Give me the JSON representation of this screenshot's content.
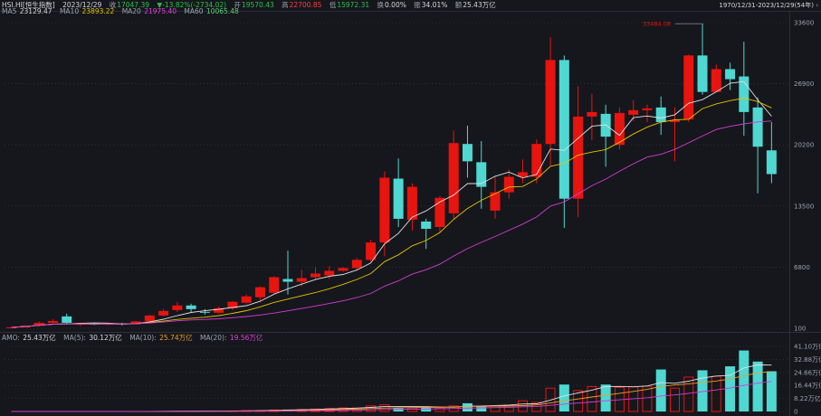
{
  "info": {
    "symbol": "HSI.HI[恒生指数]",
    "date": "2023/12/29",
    "close_label": "收",
    "close": "17047.39",
    "change": "-13.82%(-2734.02)",
    "open_label": "开",
    "open": "19570.43",
    "high_label": "高",
    "high": "22700.85",
    "low_label": "低",
    "low": "15972.31",
    "change_icon": "triangle-down-icon",
    "turnover_label": "换",
    "turnover": "0.00%",
    "amplitude_label": "振",
    "amplitude": "34.01%",
    "amount_label": "额",
    "amount": "25.43万亿",
    "range_label": "1970/12/31-2023/12/29(54年)"
  },
  "ma": {
    "ma5_label": "MA5",
    "ma5": "23129.47",
    "ma10_label": "MA10",
    "ma10": "23893.22",
    "ma20_label": "MA20",
    "ma20": "21975.40",
    "ma60_label": "MA60",
    "ma60": "10065.48"
  },
  "vol": {
    "amo_label": "AMO:",
    "amo": "25.43万亿",
    "ma5_label": "MA(5):",
    "ma5": "30.12万亿",
    "ma10_label": "MA(10):",
    "ma10": "25.74万亿",
    "ma20_label": "MA(20):",
    "ma20": "19.56万亿"
  },
  "colors": {
    "up": "#e8140f",
    "down": "#4fd8d2",
    "ma5": "#e0e0e0",
    "ma10": "#e6c200",
    "ma20": "#d43cd4",
    "ma60": "#2cb34a",
    "bg": "#16171c",
    "grid": "#3a3d46"
  },
  "annotation": "33484.08",
  "chart_data": {
    "type": "candlestick",
    "price_axis_ticks": [
      "33600",
      "26900",
      "20200",
      "13500",
      "6800",
      "100"
    ],
    "volume_axis_ticks": [
      "41.10万亿",
      "32.88万亿",
      "24.66万亿",
      "16.44万亿",
      "8.22万亿",
      "0"
    ],
    "price_ylim": [
      100,
      33600
    ],
    "volume_ylim": [
      0,
      41.1
    ],
    "candles": [
      {
        "o": 130,
        "c": 200,
        "h": 230,
        "l": 100,
        "v": 0
      },
      {
        "o": 200,
        "c": 380,
        "h": 420,
        "l": 180,
        "v": 0
      },
      {
        "o": 380,
        "c": 700,
        "h": 820,
        "l": 330,
        "v": 0.02
      },
      {
        "o": 700,
        "c": 900,
        "h": 1100,
        "l": 600,
        "v": 0.04
      },
      {
        "o": 1400,
        "c": 700,
        "h": 1700,
        "l": 600,
        "v": 0.05
      },
      {
        "o": 500,
        "c": 600,
        "h": 700,
        "l": 350,
        "v": 0.03
      },
      {
        "o": 600,
        "c": 500,
        "h": 700,
        "l": 450,
        "v": 0.03
      },
      {
        "o": 500,
        "c": 600,
        "h": 650,
        "l": 450,
        "v": 0.03
      },
      {
        "o": 600,
        "c": 500,
        "h": 700,
        "l": 400,
        "v": 0.03
      },
      {
        "o": 550,
        "c": 850,
        "h": 900,
        "l": 500,
        "v": 0.08
      },
      {
        "o": 850,
        "c": 1500,
        "h": 1600,
        "l": 800,
        "v": 0.2
      },
      {
        "o": 1500,
        "c": 2000,
        "h": 2200,
        "l": 1400,
        "v": 0.2
      },
      {
        "o": 2100,
        "c": 2600,
        "h": 3000,
        "l": 1900,
        "v": 0.25
      },
      {
        "o": 2600,
        "c": 2200,
        "h": 2800,
        "l": 1800,
        "v": 0.2
      },
      {
        "o": 1900,
        "c": 1800,
        "h": 2200,
        "l": 1600,
        "v": 0.25
      },
      {
        "o": 1800,
        "c": 2300,
        "h": 2500,
        "l": 1700,
        "v": 0.25
      },
      {
        "o": 2300,
        "c": 3000,
        "h": 3100,
        "l": 2100,
        "v": 0.6
      },
      {
        "o": 2900,
        "c": 3600,
        "h": 3800,
        "l": 2800,
        "v": 0.8
      },
      {
        "o": 3500,
        "c": 4600,
        "h": 4700,
        "l": 3000,
        "v": 0.7
      },
      {
        "o": 4000,
        "c": 5700,
        "h": 5800,
        "l": 3900,
        "v": 1.2
      },
      {
        "o": 5500,
        "c": 5200,
        "h": 8600,
        "l": 3800,
        "v": 1.2
      },
      {
        "o": 5200,
        "c": 5600,
        "h": 6500,
        "l": 4700,
        "v": 1.5
      },
      {
        "o": 5700,
        "c": 6100,
        "h": 6800,
        "l": 5400,
        "v": 1.8
      },
      {
        "o": 5900,
        "c": 6400,
        "h": 6900,
        "l": 5500,
        "v": 2.2
      },
      {
        "o": 6400,
        "c": 6700,
        "h": 6800,
        "l": 6300,
        "v": 2.5
      },
      {
        "o": 6700,
        "c": 7600,
        "h": 7800,
        "l": 6400,
        "v": 2.5
      },
      {
        "o": 7600,
        "c": 9500,
        "h": 9800,
        "l": 7400,
        "v": 3.8
      },
      {
        "o": 9500,
        "c": 16600,
        "h": 17300,
        "l": 8000,
        "v": 4.5
      },
      {
        "o": 16500,
        "c": 12100,
        "h": 18700,
        "l": 11200,
        "v": 2.0
      },
      {
        "o": 12000,
        "c": 15600,
        "h": 16000,
        "l": 10800,
        "v": 2.5
      },
      {
        "o": 11800,
        "c": 11000,
        "h": 12100,
        "l": 8800,
        "v": 2.4
      },
      {
        "o": 11200,
        "c": 14400,
        "h": 14600,
        "l": 10600,
        "v": 2.6
      },
      {
        "o": 12700,
        "c": 20400,
        "h": 21800,
        "l": 12100,
        "v": 3.8
      },
      {
        "o": 20300,
        "c": 18400,
        "h": 22300,
        "l": 16600,
        "v": 5.2
      },
      {
        "o": 18300,
        "c": 15600,
        "h": 20600,
        "l": 13200,
        "v": 3.4
      },
      {
        "o": 13000,
        "c": 15000,
        "h": 16700,
        "l": 12100,
        "v": 3.8
      },
      {
        "o": 15000,
        "c": 16700,
        "h": 17500,
        "l": 14300,
        "v": 4.2
      },
      {
        "o": 16700,
        "c": 17200,
        "h": 18600,
        "l": 16000,
        "v": 7.0
      },
      {
        "o": 16700,
        "c": 20300,
        "h": 20800,
        "l": 16000,
        "v": 6.0
      },
      {
        "o": 20300,
        "c": 29500,
        "h": 32000,
        "l": 17900,
        "v": 15.0
      },
      {
        "o": 29500,
        "c": 14300,
        "h": 30000,
        "l": 11100,
        "v": 17.0
      },
      {
        "o": 14300,
        "c": 23300,
        "h": 26600,
        "l": 12300,
        "v": 13.5
      },
      {
        "o": 23300,
        "c": 23800,
        "h": 25800,
        "l": 20700,
        "v": 16.0
      },
      {
        "o": 23600,
        "c": 21100,
        "h": 24600,
        "l": 17800,
        "v": 17.0
      },
      {
        "o": 20200,
        "c": 23700,
        "h": 24300,
        "l": 19700,
        "v": 15.5
      },
      {
        "o": 23500,
        "c": 24000,
        "h": 25100,
        "l": 22800,
        "v": 15.8
      },
      {
        "o": 24000,
        "c": 24200,
        "h": 24600,
        "l": 22700,
        "v": 16.2
      },
      {
        "o": 24300,
        "c": 22700,
        "h": 25500,
        "l": 21300,
        "v": 26.5
      },
      {
        "o": 22700,
        "c": 22900,
        "h": 24300,
        "l": 18400,
        "v": 15.0
      },
      {
        "o": 23000,
        "c": 30000,
        "h": 30100,
        "l": 22700,
        "v": 22.0
      },
      {
        "o": 30000,
        "c": 26000,
        "h": 33484,
        "l": 25700,
        "v": 26.0
      },
      {
        "o": 26000,
        "c": 28500,
        "h": 29000,
        "l": 26100,
        "v": 22.5
      },
      {
        "o": 28500,
        "c": 27400,
        "h": 29200,
        "l": 26200,
        "v": 28.5
      },
      {
        "o": 27700,
        "c": 23800,
        "h": 31500,
        "l": 21200,
        "v": 38.5
      },
      {
        "o": 24300,
        "c": 20000,
        "h": 25400,
        "l": 14900,
        "v": 31.5
      },
      {
        "o": 19600,
        "c": 17000,
        "h": 22700,
        "l": 16000,
        "v": 25.4
      }
    ]
  }
}
